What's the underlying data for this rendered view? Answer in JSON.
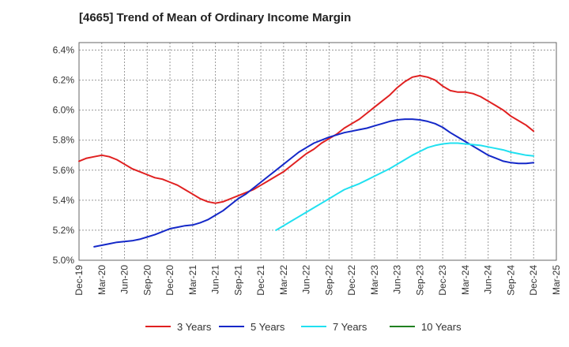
{
  "chart_data": {
    "type": "line",
    "title": "[4665]  Trend of Mean of Ordinary Income Margin",
    "xlabel": "",
    "ylabel": "",
    "x_ticks": [
      "Dec-19",
      "Mar-20",
      "Jun-20",
      "Sep-20",
      "Dec-20",
      "Mar-21",
      "Jun-21",
      "Sep-21",
      "Dec-21",
      "Mar-22",
      "Jun-22",
      "Sep-22",
      "Dec-22",
      "Mar-23",
      "Jun-23",
      "Sep-23",
      "Dec-23",
      "Mar-24",
      "Jun-24",
      "Sep-24",
      "Dec-24",
      "Mar-25"
    ],
    "y_ticks": [
      "5.0%",
      "5.2%",
      "5.4%",
      "5.6%",
      "5.8%",
      "6.0%",
      "6.2%",
      "6.4%"
    ],
    "ylim": [
      5.0,
      6.45
    ],
    "grid": true,
    "legend_position": "bottom",
    "series": [
      {
        "name": "3 Years",
        "color": "#e02020",
        "x": [
          "Dec-19",
          "Jan-20",
          "Feb-20",
          "Mar-20",
          "Apr-20",
          "May-20",
          "Jun-20",
          "Jul-20",
          "Aug-20",
          "Sep-20",
          "Oct-20",
          "Nov-20",
          "Dec-20",
          "Jan-21",
          "Feb-21",
          "Mar-21",
          "Apr-21",
          "May-21",
          "Jun-21",
          "Jul-21",
          "Aug-21",
          "Sep-21",
          "Oct-21",
          "Nov-21",
          "Dec-21",
          "Jan-22",
          "Feb-22",
          "Mar-22",
          "Apr-22",
          "May-22",
          "Jun-22",
          "Jul-22",
          "Aug-22",
          "Sep-22",
          "Oct-22",
          "Nov-22",
          "Dec-22",
          "Jan-23",
          "Feb-23",
          "Mar-23",
          "Apr-23",
          "May-23",
          "Jun-23",
          "Jul-23",
          "Aug-23",
          "Sep-23",
          "Oct-23",
          "Nov-23",
          "Dec-23",
          "Jan-24",
          "Feb-24",
          "Mar-24",
          "Apr-24",
          "May-24",
          "Jun-24",
          "Jul-24",
          "Aug-24",
          "Sep-24",
          "Oct-24",
          "Nov-24",
          "Dec-24"
        ],
        "values": [
          5.66,
          5.68,
          5.69,
          5.7,
          5.69,
          5.67,
          5.64,
          5.61,
          5.59,
          5.57,
          5.55,
          5.54,
          5.52,
          5.5,
          5.47,
          5.44,
          5.41,
          5.39,
          5.38,
          5.39,
          5.41,
          5.43,
          5.45,
          5.47,
          5.5,
          5.53,
          5.56,
          5.59,
          5.63,
          5.67,
          5.71,
          5.74,
          5.78,
          5.81,
          5.84,
          5.88,
          5.91,
          5.94,
          5.98,
          6.02,
          6.06,
          6.1,
          6.15,
          6.19,
          6.22,
          6.23,
          6.22,
          6.2,
          6.16,
          6.13,
          6.12,
          6.12,
          6.11,
          6.09,
          6.06,
          6.03,
          6.0,
          5.96,
          5.93,
          5.9,
          5.86
        ]
      },
      {
        "name": "5 Years",
        "color": "#1428c8",
        "x": [
          "Feb-20",
          "Mar-20",
          "Apr-20",
          "May-20",
          "Jun-20",
          "Jul-20",
          "Aug-20",
          "Sep-20",
          "Oct-20",
          "Nov-20",
          "Dec-20",
          "Jan-21",
          "Feb-21",
          "Mar-21",
          "Apr-21",
          "May-21",
          "Jun-21",
          "Jul-21",
          "Aug-21",
          "Sep-21",
          "Oct-21",
          "Nov-21",
          "Dec-21",
          "Jan-22",
          "Feb-22",
          "Mar-22",
          "Apr-22",
          "May-22",
          "Jun-22",
          "Jul-22",
          "Aug-22",
          "Sep-22",
          "Oct-22",
          "Nov-22",
          "Dec-22",
          "Jan-23",
          "Feb-23",
          "Mar-23",
          "Apr-23",
          "May-23",
          "Jun-23",
          "Jul-23",
          "Aug-23",
          "Sep-23",
          "Oct-23",
          "Nov-23",
          "Dec-23",
          "Jan-24",
          "Feb-24",
          "Mar-24",
          "Apr-24",
          "May-24",
          "Jun-24",
          "Jul-24",
          "Aug-24",
          "Sep-24",
          "Oct-24",
          "Nov-24",
          "Dec-24"
        ],
        "values": [
          5.09,
          5.1,
          5.11,
          5.12,
          5.125,
          5.13,
          5.14,
          5.155,
          5.17,
          5.19,
          5.21,
          5.22,
          5.23,
          5.235,
          5.25,
          5.27,
          5.3,
          5.33,
          5.37,
          5.41,
          5.44,
          5.48,
          5.52,
          5.56,
          5.6,
          5.64,
          5.68,
          5.72,
          5.75,
          5.78,
          5.8,
          5.82,
          5.835,
          5.85,
          5.86,
          5.87,
          5.88,
          5.895,
          5.91,
          5.925,
          5.935,
          5.94,
          5.94,
          5.935,
          5.925,
          5.91,
          5.885,
          5.85,
          5.82,
          5.79,
          5.76,
          5.73,
          5.7,
          5.68,
          5.66,
          5.65,
          5.645,
          5.645,
          5.65
        ]
      },
      {
        "name": "7 Years",
        "color": "#20e0f0",
        "x": [
          "Feb-22",
          "Mar-22",
          "Apr-22",
          "May-22",
          "Jun-22",
          "Jul-22",
          "Aug-22",
          "Sep-22",
          "Oct-22",
          "Nov-22",
          "Dec-22",
          "Jan-23",
          "Feb-23",
          "Mar-23",
          "Apr-23",
          "May-23",
          "Jun-23",
          "Jul-23",
          "Aug-23",
          "Sep-23",
          "Oct-23",
          "Nov-23",
          "Dec-23",
          "Jan-24",
          "Feb-24",
          "Mar-24",
          "Apr-24",
          "May-24",
          "Jun-24",
          "Jul-24",
          "Aug-24",
          "Sep-24",
          "Oct-24",
          "Nov-24",
          "Dec-24"
        ],
        "values": [
          5.2,
          5.23,
          5.26,
          5.29,
          5.32,
          5.35,
          5.38,
          5.41,
          5.44,
          5.47,
          5.49,
          5.51,
          5.535,
          5.56,
          5.585,
          5.61,
          5.64,
          5.67,
          5.7,
          5.725,
          5.75,
          5.765,
          5.775,
          5.78,
          5.78,
          5.775,
          5.77,
          5.765,
          5.755,
          5.745,
          5.735,
          5.72,
          5.71,
          5.7,
          5.695
        ]
      },
      {
        "name": "10 Years",
        "color": "#208020",
        "x": [],
        "values": []
      }
    ]
  }
}
